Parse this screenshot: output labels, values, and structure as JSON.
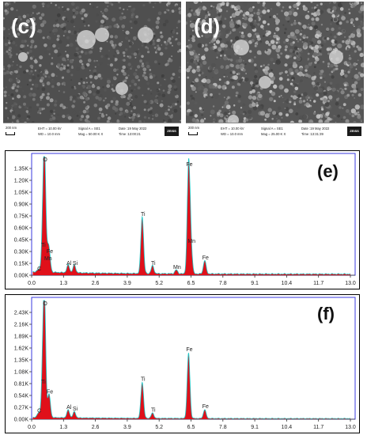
{
  "sem_panels": [
    {
      "label": "(c)",
      "scale": "200 nm",
      "eht": "EHT = 10.00 kV",
      "wd": "WD = 10.0 mm",
      "signal": "Signal A = SE1",
      "mag": "Mag = 50.00 K X",
      "date": "Date :19 May 2022",
      "time": "Time :13:00:21",
      "logo": "ZEISS"
    },
    {
      "label": "(d)",
      "scale": "200 nm",
      "eht": "EHT = 10.00 kV",
      "wd": "WD = 10.0 mm",
      "signal": "Signal A = SE1",
      "mag": "Mag = 25.00 K X",
      "date": "Date :19 May 2022",
      "time": "Time :13:31:39",
      "logo": "ZEISS"
    }
  ],
  "chart_data": [
    {
      "type": "area",
      "panel_label": "(e)",
      "x_ticks": [
        "0.0",
        "1.3",
        "2.6",
        "3.9",
        "5.2",
        "6.5",
        "7.8",
        "9.1",
        "10.4",
        "11.7",
        "13.0"
      ],
      "y_ticks": [
        "0.00K",
        "0.15K",
        "0.30K",
        "0.45K",
        "0.60K",
        "0.75K",
        "0.90K",
        "1.05K",
        "1.20K",
        "1.35K"
      ],
      "xlim": [
        0,
        13.0
      ],
      "ylim": [
        0,
        1.5
      ],
      "peaks": [
        {
          "x": 0.52,
          "y": 1.48,
          "label": "O"
        },
        {
          "x": 0.45,
          "y": 0.33,
          "label": "Ti"
        },
        {
          "x": 0.71,
          "y": 0.25,
          "label": "Fe"
        },
        {
          "x": 0.64,
          "y": 0.16,
          "label": "Mn"
        },
        {
          "x": 0.28,
          "y": 0.03,
          "label": "C"
        },
        {
          "x": 1.49,
          "y": 0.1,
          "label": "Al"
        },
        {
          "x": 1.74,
          "y": 0.1,
          "label": "Si"
        },
        {
          "x": 4.51,
          "y": 0.72,
          "label": "Ti"
        },
        {
          "x": 4.93,
          "y": 0.1,
          "label": "Ti"
        },
        {
          "x": 5.9,
          "y": 0.05,
          "label": "Mn"
        },
        {
          "x": 6.4,
          "y": 1.35,
          "label": "Fe"
        },
        {
          "x": 6.49,
          "y": 0.38,
          "label": "Mn"
        },
        {
          "x": 7.06,
          "y": 0.17,
          "label": "Fe"
        }
      ],
      "colors": {
        "spectrum": "#e0101a",
        "outline": "#19c6c6",
        "frame": "#3a3adf"
      }
    },
    {
      "type": "area",
      "panel_label": "(f)",
      "x_ticks": [
        "0.0",
        "1.3",
        "2.6",
        "3.9",
        "5.2",
        "6.5",
        "7.8",
        "9.1",
        "10.4",
        "11.7",
        "13.0"
      ],
      "y_ticks": [
        "0.00K",
        "0.27K",
        "0.54K",
        "0.81K",
        "1.08K",
        "1.35K",
        "1.62K",
        "1.89K",
        "2.16K",
        "2.43K"
      ],
      "xlim": [
        0,
        13.0
      ],
      "ylim": [
        0,
        2.7
      ],
      "peaks": [
        {
          "x": 0.52,
          "y": 2.65,
          "label": "O"
        },
        {
          "x": 0.45,
          "y": 0.76,
          "label": "Ti"
        },
        {
          "x": 0.71,
          "y": 0.53,
          "label": "Fe"
        },
        {
          "x": 0.28,
          "y": 0.1,
          "label": "C"
        },
        {
          "x": 1.49,
          "y": 0.18,
          "label": "Al"
        },
        {
          "x": 1.74,
          "y": 0.14,
          "label": "Si"
        },
        {
          "x": 4.51,
          "y": 0.82,
          "label": "Ti"
        },
        {
          "x": 4.93,
          "y": 0.12,
          "label": "Ti"
        },
        {
          "x": 6.4,
          "y": 1.49,
          "label": "Fe"
        },
        {
          "x": 7.06,
          "y": 0.2,
          "label": "Fe"
        }
      ],
      "colors": {
        "spectrum": "#e0101a",
        "outline": "#19c6c6",
        "frame": "#3a3adf"
      }
    }
  ]
}
